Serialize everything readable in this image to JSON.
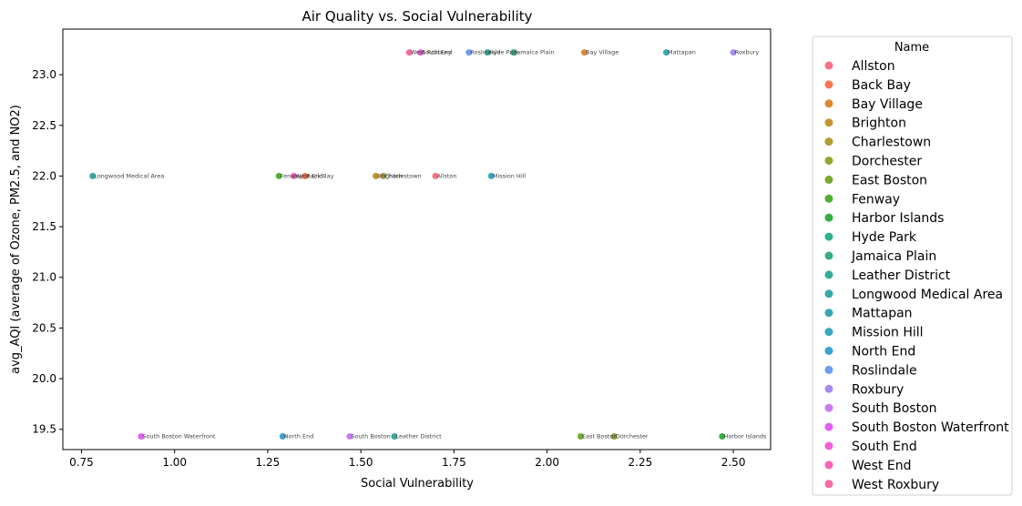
{
  "chart_data": {
    "type": "scatter",
    "title": "Air Quality vs. Social Vulnerability",
    "xlabel": "Social Vulnerability",
    "ylabel": "avg_AQI (average of Ozone, PM2.5, and NO2)",
    "xlim": [
      0.7,
      2.6
    ],
    "ylim": [
      19.3,
      23.45
    ],
    "xticks": [
      0.75,
      1.0,
      1.25,
      1.5,
      1.75,
      2.0,
      2.25,
      2.5
    ],
    "xtick_labels": [
      "0.75",
      "1.00",
      "1.25",
      "1.50",
      "1.75",
      "2.00",
      "2.25",
      "2.50"
    ],
    "yticks": [
      19.5,
      20.0,
      20.5,
      21.0,
      21.5,
      22.0,
      22.5,
      23.0
    ],
    "ytick_labels": [
      "19.5",
      "20.0",
      "20.5",
      "21.0",
      "21.5",
      "22.0",
      "22.5",
      "23.0"
    ],
    "grid": false,
    "legend_placement": "outside-right",
    "legend_title": "Name",
    "series": [
      {
        "name": "Allston",
        "color": "#f77189",
        "x": 1.7,
        "y": 22.0
      },
      {
        "name": "Back Bay",
        "color": "#f7754f",
        "x": 1.35,
        "y": 22.0
      },
      {
        "name": "Bay Village",
        "color": "#dc8932",
        "x": 2.1,
        "y": 23.22
      },
      {
        "name": "Brighton",
        "color": "#c39532",
        "x": 1.54,
        "y": 22.0
      },
      {
        "name": "Charlestown",
        "color": "#ae9d31",
        "x": 1.56,
        "y": 22.0
      },
      {
        "name": "Dorchester",
        "color": "#97a431",
        "x": 2.18,
        "y": 19.43
      },
      {
        "name": "East Boston",
        "color": "#77ab31",
        "x": 2.09,
        "y": 19.43
      },
      {
        "name": "Fenway",
        "color": "#50b131",
        "x": 1.28,
        "y": 22.0
      },
      {
        "name": "Harbor Islands",
        "color": "#33b040",
        "x": 2.47,
        "y": 19.43
      },
      {
        "name": "Hyde Park",
        "color": "#34ae91",
        "x": 1.84,
        "y": 23.22
      },
      {
        "name": "Jamaica Plain",
        "color": "#35ac88",
        "x": 1.91,
        "y": 23.22
      },
      {
        "name": "Leather District",
        "color": "#36ab9a",
        "x": 1.59,
        "y": 19.43
      },
      {
        "name": "Longwood Medical Area",
        "color": "#37a9a6",
        "x": 0.78,
        "y": 22.0
      },
      {
        "name": "Mattapan",
        "color": "#38a8b3",
        "x": 2.32,
        "y": 23.22
      },
      {
        "name": "Mission Hill",
        "color": "#39a7bf",
        "x": 1.85,
        "y": 22.0
      },
      {
        "name": "North End",
        "color": "#3ba3d0",
        "x": 1.29,
        "y": 19.43
      },
      {
        "name": "Roslindale",
        "color": "#6e9bf4",
        "x": 1.79,
        "y": 23.22
      },
      {
        "name": "Roxbury",
        "color": "#a48cf4",
        "x": 2.5,
        "y": 23.22
      },
      {
        "name": "South Boston",
        "color": "#cc7af4",
        "x": 1.47,
        "y": 19.43
      },
      {
        "name": "South Boston Waterfront",
        "color": "#e15ff4",
        "x": 0.91,
        "y": 19.43
      },
      {
        "name": "South End",
        "color": "#f45fd6",
        "x": 1.66,
        "y": 23.22
      },
      {
        "name": "West End",
        "color": "#f564b8",
        "x": 1.32,
        "y": 22.0
      },
      {
        "name": "West Roxbury",
        "color": "#f66b9f",
        "x": 1.63,
        "y": 23.22
      }
    ]
  }
}
